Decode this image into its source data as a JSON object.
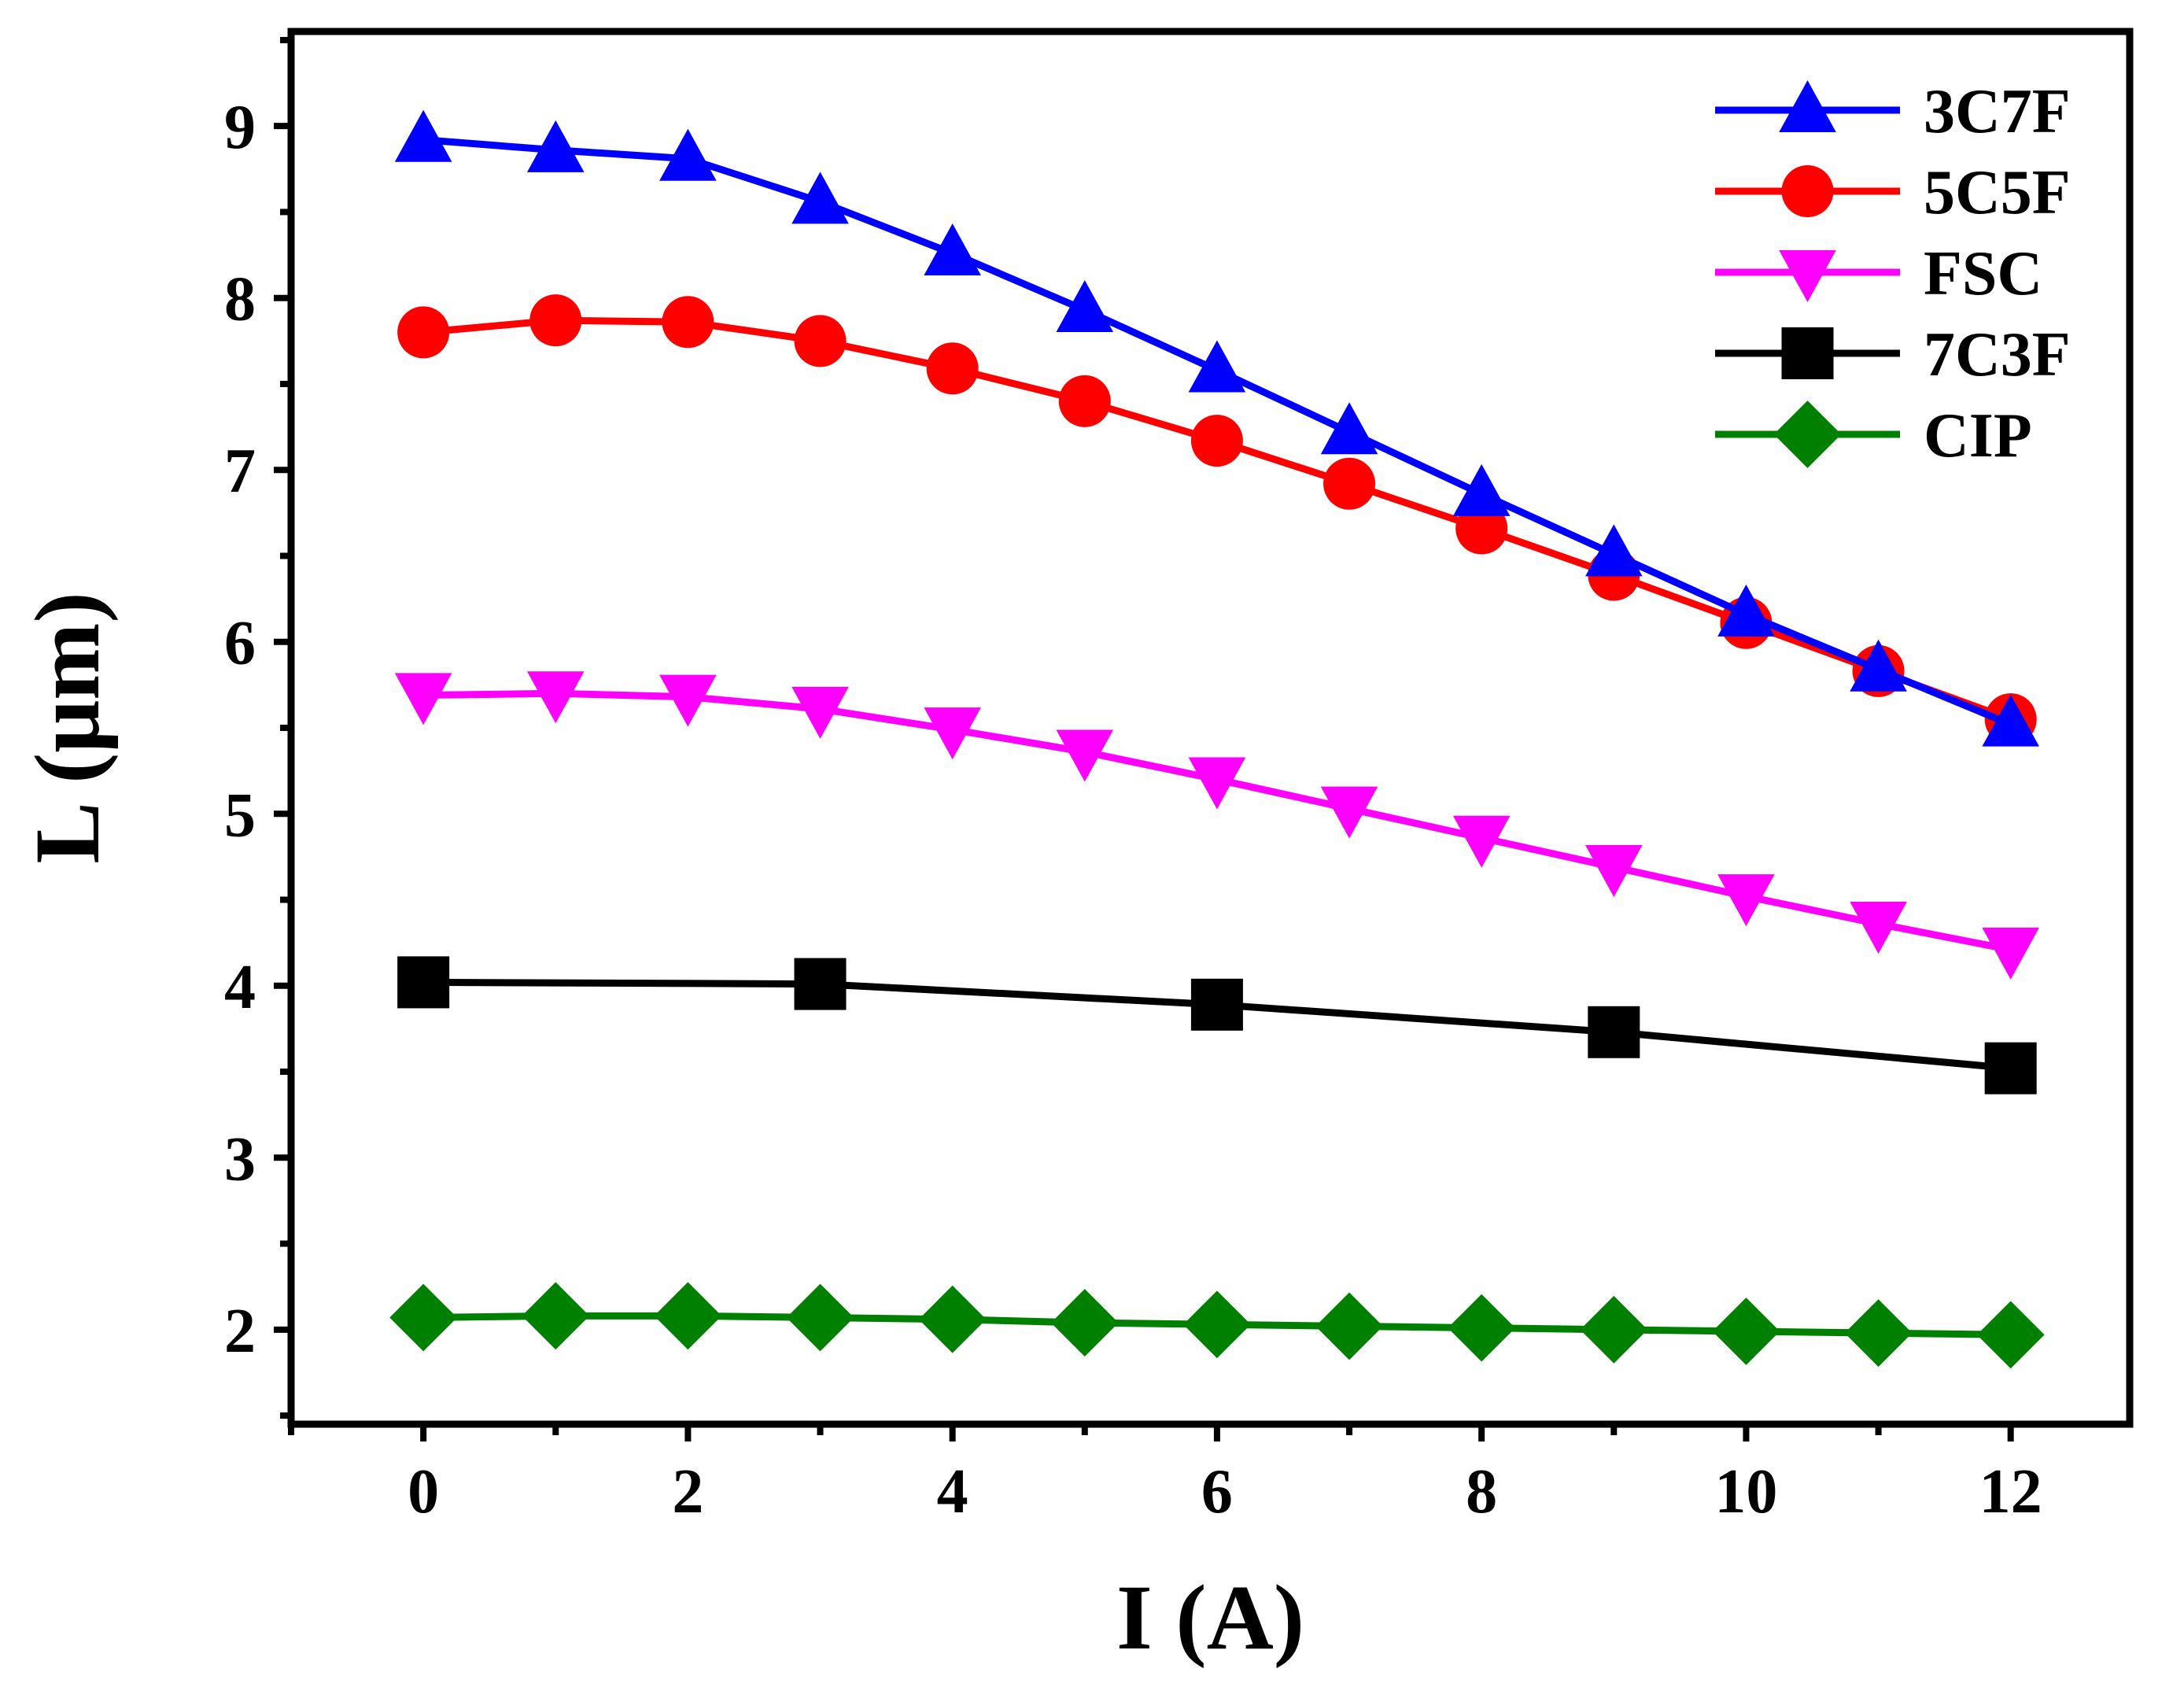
{
  "chart_data": {
    "type": "line",
    "title": "",
    "xlabel": "I (A)",
    "ylabel": "L (μm)",
    "xlim": [
      -1,
      12.9
    ],
    "ylim": [
      1.45,
      9.55
    ],
    "xticks": [
      0,
      2,
      4,
      6,
      8,
      10,
      12
    ],
    "xtick_labels": [
      "0",
      "2",
      "4",
      "6",
      "8",
      "10",
      "12"
    ],
    "yticks": [
      2,
      3,
      4,
      5,
      6,
      7,
      8,
      9
    ],
    "ytick_labels": [
      "2",
      "3",
      "4",
      "5",
      "6",
      "7",
      "8",
      "9"
    ],
    "grid": false,
    "legend_position": "top-right",
    "series": [
      {
        "name": "3C7F",
        "color": "#0000FF",
        "marker": "triangle-up",
        "x": [
          0,
          1,
          2,
          3,
          4,
          5,
          6,
          7,
          8,
          9,
          10,
          11,
          12
        ],
        "y": [
          8.92,
          8.86,
          8.81,
          8.56,
          8.26,
          7.93,
          7.58,
          7.22,
          6.86,
          6.51,
          6.16,
          5.84,
          5.52
        ]
      },
      {
        "name": "5C5F",
        "color": "#FF0000",
        "marker": "circle",
        "x": [
          0,
          1,
          2,
          3,
          4,
          5,
          6,
          7,
          8,
          9,
          10,
          11,
          12
        ],
        "y": [
          7.8,
          7.87,
          7.86,
          7.75,
          7.59,
          7.4,
          7.17,
          6.92,
          6.66,
          6.39,
          6.11,
          5.83,
          5.55
        ]
      },
      {
        "name": "FSC",
        "color": "#FF00FF",
        "marker": "triangle-down",
        "x": [
          0,
          1,
          2,
          3,
          4,
          5,
          6,
          7,
          8,
          9,
          10,
          11,
          12
        ],
        "y": [
          5.69,
          5.7,
          5.68,
          5.61,
          5.49,
          5.36,
          5.2,
          5.03,
          4.86,
          4.69,
          4.52,
          4.36,
          4.21
        ]
      },
      {
        "name": "7C3F",
        "color": "#000000",
        "marker": "square",
        "x": [
          0,
          3,
          6,
          9,
          12
        ],
        "y": [
          4.02,
          4.01,
          3.89,
          3.73,
          3.52
        ]
      },
      {
        "name": "CIP",
        "color": "#008000",
        "marker": "diamond",
        "x": [
          0,
          1,
          2,
          3,
          4,
          5,
          6,
          7,
          8,
          9,
          10,
          11,
          12
        ],
        "y": [
          2.07,
          2.08,
          2.08,
          2.07,
          2.06,
          2.04,
          2.03,
          2.02,
          2.01,
          2.0,
          1.99,
          1.98,
          1.97
        ]
      }
    ]
  }
}
